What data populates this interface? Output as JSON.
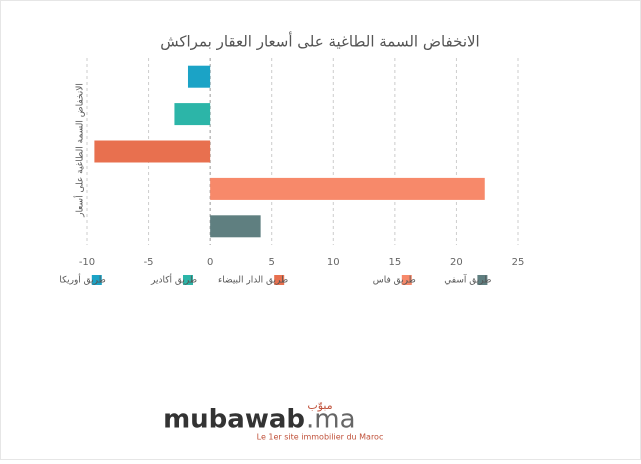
{
  "chart_data": {
    "type": "hbar",
    "title": "الانخفاض السمة الطاغية على أسعار العقار بمراكش",
    "y_label": "الانخفاض السمة الطاغية على أسعار",
    "series": [
      {
        "name": "طريق أوريكا",
        "color": "#1ba3c6",
        "values": [
          -1.8
        ]
      },
      {
        "name": "طريق أكادير",
        "color": "#2cb5a8",
        "values": [
          -2.9
        ]
      },
      {
        "name": "طريق الدار البيضاء",
        "color": "#e8704f",
        "values": [
          -9.4
        ]
      },
      {
        "name": "طريق فاس",
        "color": "#f7896a",
        "values": [
          22.3
        ]
      },
      {
        "name": "طريق آسفي",
        "color": "#5f7f80",
        "values": [
          4.1
        ]
      }
    ],
    "xlim": [
      -10,
      25
    ],
    "xticks": [
      -10,
      -5,
      0,
      5,
      10,
      15,
      20,
      25
    ],
    "grid": true,
    "legend": "bottom"
  },
  "logo": {
    "arabic": "مبوّب",
    "name": "mubawab",
    "suffix": ".ma",
    "tagline": "Le 1er site immobilier du Maroc"
  }
}
